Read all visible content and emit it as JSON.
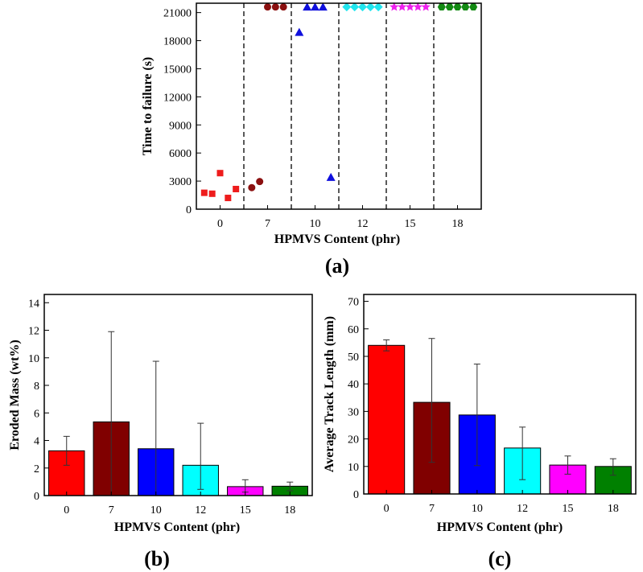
{
  "chart_data": [
    {
      "type": "scatter",
      "panel_label": "(a)",
      "xlabel": "HPMVS Content (phr)",
      "ylabel": "Time to failure (s)",
      "ylim": [
        0,
        22000
      ],
      "yticks": [
        0,
        3000,
        6000,
        9000,
        12000,
        15000,
        18000,
        21000
      ],
      "categories": [
        "0",
        "7",
        "10",
        "12",
        "15",
        "18"
      ],
      "group_dividers": true,
      "series": [
        {
          "category": "0",
          "marker": "square",
          "color": "#ee1c1c",
          "values": [
            1750,
            1650,
            3850,
            1200,
            2150
          ]
        },
        {
          "category": "7",
          "marker": "circle",
          "color": "#8b1010",
          "values": [
            2300,
            2950,
            21600,
            21600,
            21600
          ]
        },
        {
          "category": "10",
          "marker": "triangle",
          "color": "#1010dd",
          "values": [
            18900,
            21600,
            21600,
            21600,
            3400
          ]
        },
        {
          "category": "12",
          "marker": "diamond",
          "color": "#22e5ee",
          "values": [
            21600,
            21600,
            21600,
            21600,
            21600
          ]
        },
        {
          "category": "15",
          "marker": "star",
          "color": "#ee22ee",
          "values": [
            21600,
            21600,
            21600,
            21600,
            21600
          ]
        },
        {
          "category": "18",
          "marker": "hexagon",
          "color": "#138a13",
          "values": [
            21600,
            21600,
            21600,
            21600,
            21600
          ]
        }
      ]
    },
    {
      "type": "bar",
      "panel_label": "(b)",
      "xlabel": "HPMVS Content (phr)",
      "ylabel": "Eroded Mass (wt%)",
      "ylim": [
        0,
        14.6
      ],
      "yticks": [
        0,
        2,
        4,
        6,
        8,
        10,
        12,
        14
      ],
      "categories": [
        "0",
        "7",
        "10",
        "12",
        "15",
        "18"
      ],
      "values": [
        3.25,
        5.35,
        3.4,
        2.2,
        0.65,
        0.68
      ],
      "error_low": [
        2.2,
        0.0,
        0.0,
        0.45,
        0.25,
        0.35
      ],
      "error_high": [
        4.3,
        11.9,
        9.75,
        5.25,
        1.15,
        0.98
      ],
      "colors": [
        "#ff0000",
        "#800000",
        "#0000ff",
        "#00ffff",
        "#ff00ff",
        "#008000"
      ]
    },
    {
      "type": "bar",
      "panel_label": "(c)",
      "xlabel": "HPMVS Content (phr)",
      "ylabel": "Average Track Length (mm)",
      "ylim": [
        0,
        72.5
      ],
      "yticks": [
        0,
        10,
        20,
        30,
        40,
        50,
        60,
        70
      ],
      "categories": [
        "0",
        "7",
        "10",
        "12",
        "15",
        "18"
      ],
      "values": [
        54.0,
        33.3,
        28.7,
        16.7,
        10.5,
        10.0
      ],
      "error_low": [
        52.0,
        11.5,
        10.3,
        5.2,
        7.2,
        6.8
      ],
      "error_high": [
        56.0,
        56.5,
        47.2,
        24.3,
        13.8,
        12.8
      ],
      "colors": [
        "#ff0000",
        "#800000",
        "#0000ff",
        "#00ffff",
        "#ff00ff",
        "#008000"
      ]
    }
  ]
}
